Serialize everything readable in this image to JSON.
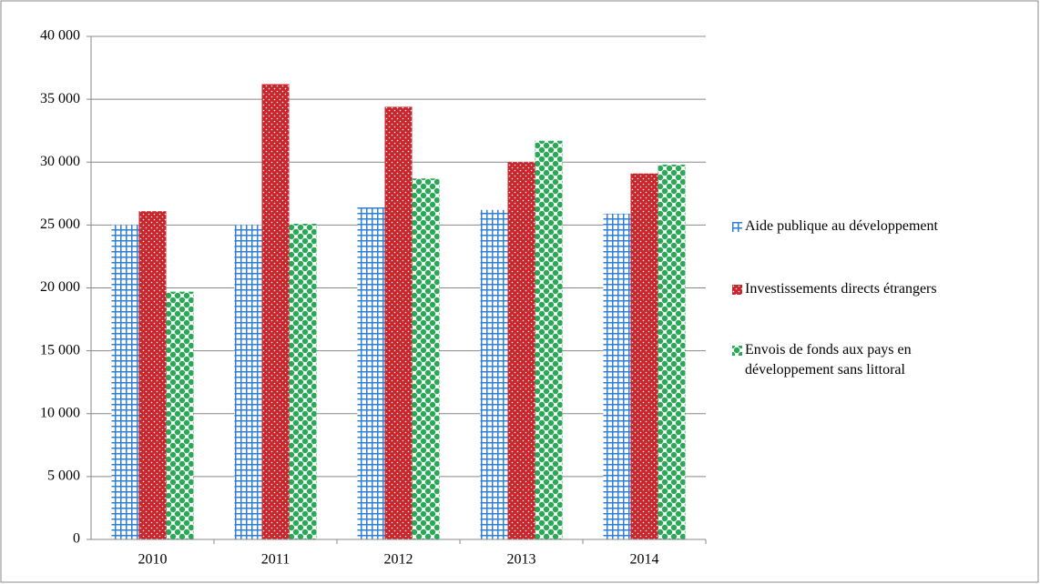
{
  "chart_data": {
    "type": "bar",
    "categories": [
      "2010",
      "2011",
      "2012",
      "2013",
      "2014"
    ],
    "series": [
      {
        "name": "Aide publique au développement",
        "color": "#2f7fd0",
        "pattern": "grid",
        "values": [
          25000,
          25000,
          26400,
          26200,
          25900
        ]
      },
      {
        "name": "Investissements directs étrangers",
        "color": "#c8262c",
        "pattern": "dots",
        "values": [
          26100,
          36200,
          34400,
          30000,
          29100
        ]
      },
      {
        "name": "Envois de fonds aux pays en développement sans littoral",
        "color": "#2aa858",
        "pattern": "checker",
        "values": [
          19700,
          25100,
          28700,
          31700,
          29800
        ]
      }
    ],
    "ylim": [
      0,
      40000
    ],
    "yticks": [
      0,
      {
        "value": 5000,
        "label": "5 000"
      },
      {
        "value": 10000,
        "label": "10 000"
      },
      {
        "value": 15000,
        "label": "15 000"
      },
      {
        "value": 20000,
        "label": "20 000"
      },
      {
        "value": 25000,
        "label": "25 000"
      },
      {
        "value": 30000,
        "label": "30 000"
      },
      {
        "value": 35000,
        "label": "35 000"
      },
      {
        "value": 40000,
        "label": "40 000"
      }
    ],
    "grid": true,
    "legend": "right"
  }
}
